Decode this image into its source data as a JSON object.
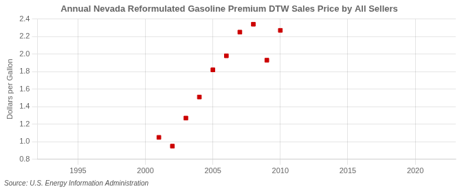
{
  "chart_data": {
    "type": "scatter",
    "title": "Annual Nevada Reformulated Gasoline Premium DTW Sales Price by All Sellers",
    "ylabel": "Dollars per Gallon",
    "annotation": "Source: U.S. Energy Information Administration",
    "x": [
      2001,
      2002,
      2003,
      2004,
      2005,
      2006,
      2007,
      2008,
      2009,
      2010
    ],
    "values": [
      1.05,
      0.95,
      1.27,
      1.51,
      1.82,
      1.98,
      2.25,
      2.34,
      1.93,
      2.27
    ],
    "color": "#cc0000",
    "marker": "square",
    "xlim": [
      1992,
      2023
    ],
    "ylim": [
      0.8,
      2.4
    ],
    "xticks": [
      1995,
      2000,
      2005,
      2010,
      2015,
      2020
    ],
    "yticks": [
      0.8,
      {
        "value": 1.0,
        "label": "1.0"
      },
      1.2,
      1.4,
      1.6,
      1.8,
      {
        "value": 2.0,
        "label": "2.0"
      },
      2.2,
      2.4
    ],
    "grid": true
  }
}
